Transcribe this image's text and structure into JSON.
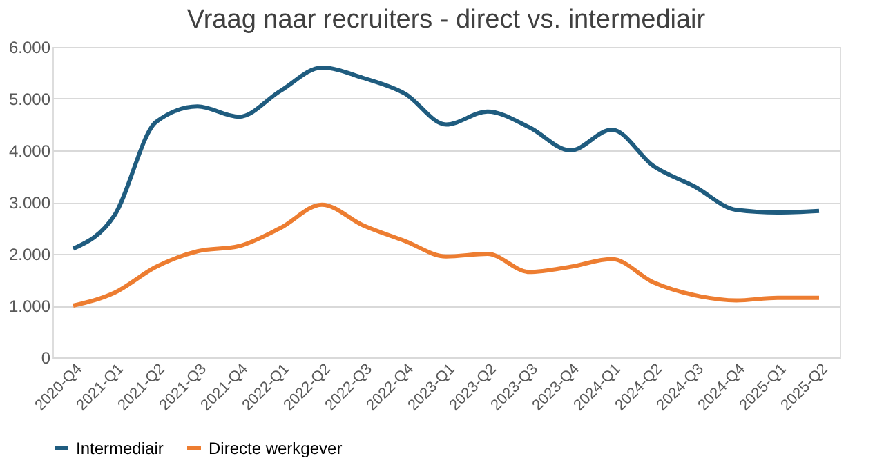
{
  "chart_data": {
    "type": "line",
    "title": "Vraag naar recruiters - direct vs. intermediair",
    "categories": [
      "2020-Q4",
      "2021-Q1",
      "2021-Q2",
      "2021-Q3",
      "2021-Q4",
      "2022-Q1",
      "2022-Q2",
      "2022-Q3",
      "2022-Q4",
      "2023-Q1",
      "2023-Q2",
      "2023-Q3",
      "2023-Q4",
      "2024-Q1",
      "2024-Q2",
      "2024-Q3",
      "2024-Q4",
      "2025-Q1",
      "2025-Q2"
    ],
    "series": [
      {
        "name": "Intermediair",
        "color": "#1f5c7f",
        "values": [
          2100,
          2750,
          4550,
          4850,
          4650,
          5150,
          5600,
          5400,
          5100,
          4500,
          4750,
          4450,
          4000,
          4400,
          3700,
          3300,
          2850,
          2800,
          2830
        ]
      },
      {
        "name": "Directe werkgever",
        "color": "#ed7d31",
        "values": [
          1000,
          1250,
          1750,
          2050,
          2150,
          2500,
          2950,
          2550,
          2250,
          1950,
          2000,
          1650,
          1750,
          1900,
          1450,
          1200,
          1100,
          1150,
          1150
        ]
      }
    ],
    "ylim": [
      0,
      6000
    ],
    "yticks": [
      0,
      {
        "value": 1000,
        "label": "1.000"
      },
      {
        "value": 2000,
        "label": "2.000"
      },
      {
        "value": 3000,
        "label": "3.000"
      },
      {
        "value": 4000,
        "label": "4.000"
      },
      {
        "value": 5000,
        "label": "5.000"
      },
      {
        "value": 6000,
        "label": "6.000"
      }
    ],
    "grid": "y",
    "legend": "bottom",
    "marker": "none",
    "line_style": "solid"
  }
}
